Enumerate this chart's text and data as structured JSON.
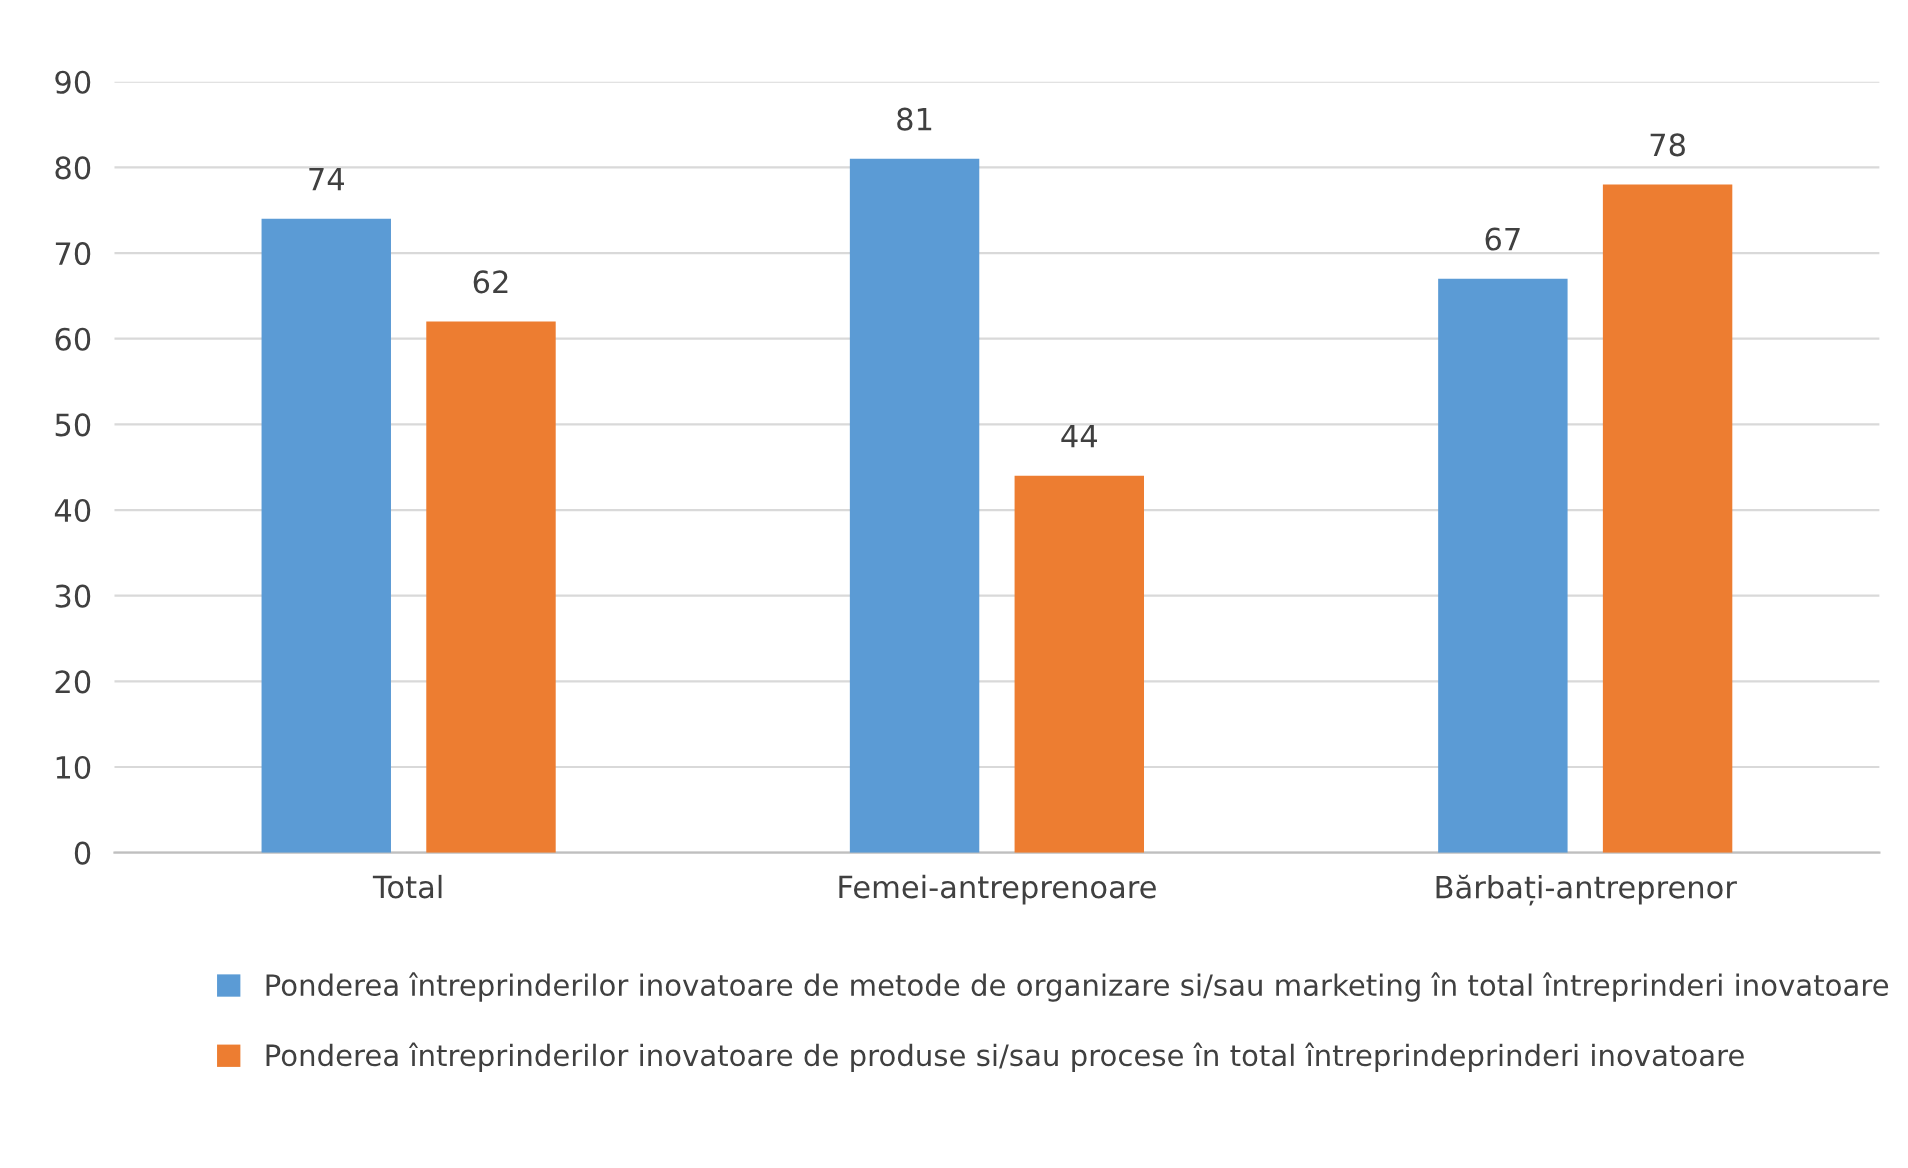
{
  "chart_data": {
    "type": "bar",
    "categories": [
      "Total",
      "Femei-antreprenoare",
      "Bărbați-antreprenor"
    ],
    "series": [
      {
        "name": "Ponderea întreprinderilor inovatoare de metode de organizare si/sau marketing în total întreprinderi inovatoare",
        "color": "#5b9bd5",
        "values": [
          74,
          81,
          67
        ]
      },
      {
        "name": "Ponderea întreprinderilor inovatoare de produse si/sau procese în total întreprindeprinderi inovatoare",
        "color": "#ed7d31",
        "values": [
          62,
          44,
          78
        ]
      }
    ],
    "ylim": [
      0,
      90
    ],
    "yticks": [
      0,
      10,
      20,
      30,
      40,
      50,
      60,
      70,
      80,
      90
    ],
    "grid": "y",
    "legend": "bottom",
    "data_labels": true
  }
}
